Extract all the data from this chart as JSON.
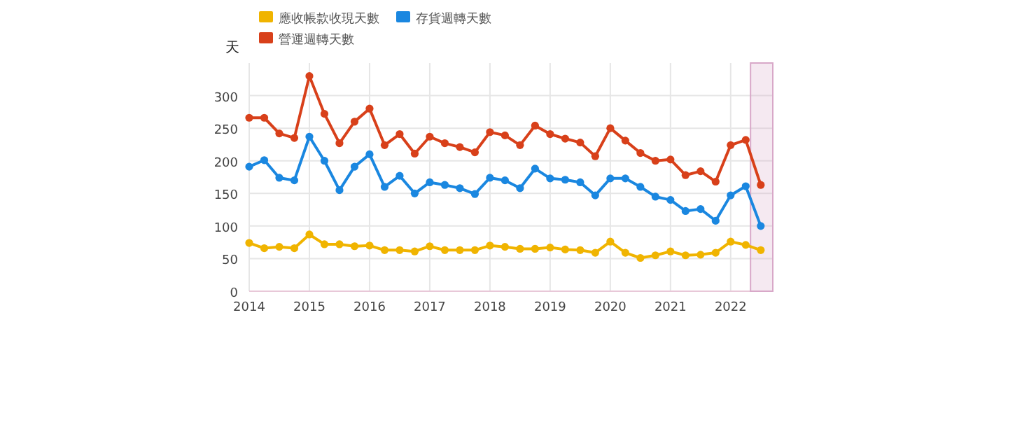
{
  "chart_data": {
    "type": "line",
    "ylabel": "天",
    "x": [
      2014,
      2014.25,
      2014.5,
      2014.75,
      2015,
      2015.25,
      2015.5,
      2015.75,
      2016,
      2016.25,
      2016.5,
      2016.75,
      2017,
      2017.25,
      2017.5,
      2017.75,
      2018,
      2018.25,
      2018.5,
      2018.75,
      2019,
      2019.25,
      2019.5,
      2019.75,
      2020,
      2020.25,
      2020.5,
      2020.75,
      2021,
      2021.25,
      2021.5,
      2021.75,
      2022,
      2022.25,
      2022.5
    ],
    "series": [
      {
        "name": "應收帳款收現天數",
        "color": "#f0b400",
        "values": [
          74,
          66,
          68,
          66,
          87,
          72,
          72,
          69,
          70,
          63,
          63,
          61,
          69,
          63,
          63,
          63,
          70,
          68,
          65,
          65,
          67,
          64,
          63,
          59,
          76,
          59,
          51,
          55,
          61,
          55,
          56,
          59,
          76,
          71,
          63
        ]
      },
      {
        "name": "存貨週轉天數",
        "color": "#1a87e0",
        "values": [
          191,
          201,
          174,
          170,
          237,
          200,
          155,
          191,
          210,
          160,
          177,
          150,
          167,
          163,
          158,
          149,
          174,
          170,
          158,
          188,
          173,
          171,
          167,
          147,
          173,
          173,
          160,
          145,
          140,
          123,
          126,
          108,
          147,
          161,
          100
        ]
      },
      {
        "name": "營運週轉天數",
        "color": "#d8401a",
        "values": [
          266,
          266,
          242,
          235,
          330,
          272,
          227,
          260,
          280,
          224,
          241,
          211,
          237,
          227,
          221,
          213,
          244,
          239,
          224,
          254,
          241,
          234,
          228,
          207,
          250,
          231,
          212,
          200,
          202,
          178,
          184,
          168,
          224,
          232,
          163
        ]
      }
    ],
    "xlim": [
      2014,
      2022.7
    ],
    "xticks": [
      2014,
      2015,
      2016,
      2017,
      2018,
      2019,
      2020,
      2021,
      2022
    ],
    "ylim": [
      0,
      350
    ],
    "yticks": [
      0,
      50,
      100,
      150,
      200,
      250,
      300
    ],
    "bands": [
      {
        "axis": "x",
        "from": 2022.33,
        "to": 2022.7,
        "color": "#d8a8c8"
      }
    ],
    "grid": true,
    "legend": "top left",
    "marker": "circle",
    "line_style": "solid"
  }
}
